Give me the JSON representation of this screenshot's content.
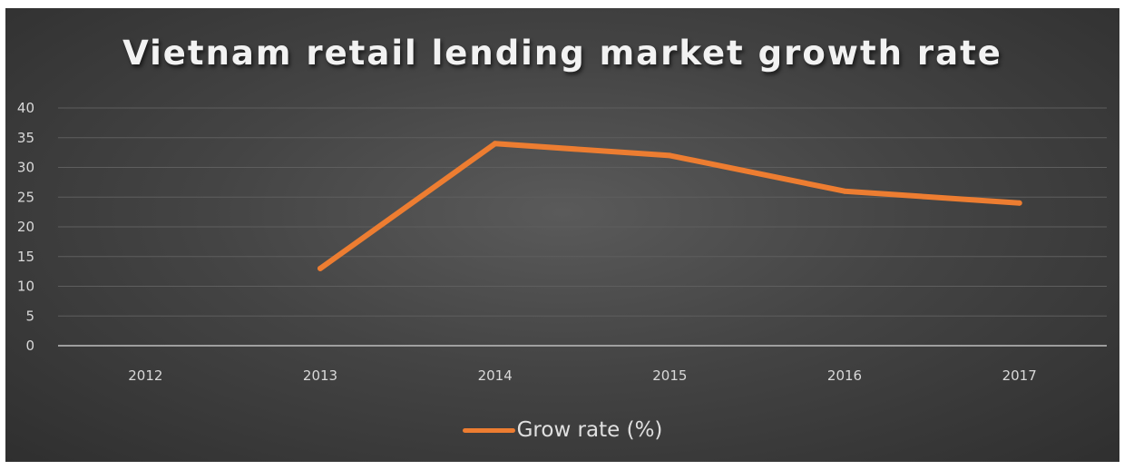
{
  "chart_data": {
    "type": "line",
    "title": "Vietnam retail lending market  growth rate",
    "categories": [
      "2012",
      "2013",
      "2014",
      "2015",
      "2016",
      "2017"
    ],
    "series": [
      {
        "name": "Grow rate (%)",
        "values": [
          null,
          13,
          34,
          32,
          26,
          24
        ],
        "color": "#ED7D31"
      }
    ],
    "ylim": [
      0,
      40
    ],
    "yticks": [
      "0",
      "5",
      "10",
      "15",
      "20",
      "25",
      "30",
      "35",
      "40"
    ],
    "grid": true,
    "legend_position": "bottom",
    "background_color": "#444444",
    "gridline_color": "#5e5e5e",
    "axis_color": "#bfbfbf"
  }
}
